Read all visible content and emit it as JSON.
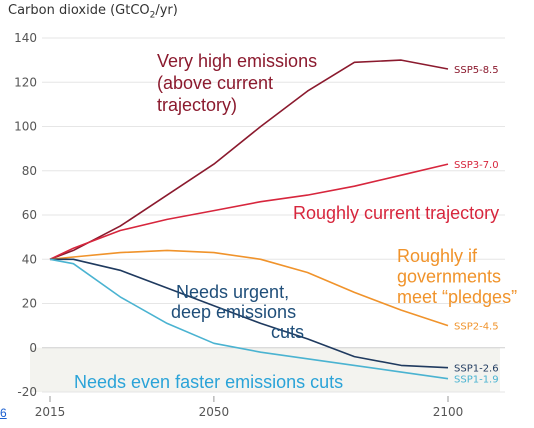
{
  "chart_data": {
    "type": "line",
    "ylabel_prefix": "Carbon dioxide (GtCO",
    "ylabel_sub": "2",
    "ylabel_suffix": "/yr)",
    "ylim": [
      -20,
      140
    ],
    "yticks": [
      -20,
      0,
      20,
      40,
      60,
      80,
      100,
      120,
      140
    ],
    "xlim": [
      2015,
      2100
    ],
    "xticks": [
      2015,
      2050,
      2100
    ],
    "grid": "horizontal",
    "series": [
      {
        "name": "SSP5-8.5",
        "color": "#8b1a2e",
        "x": [
          2015,
          2020,
          2030,
          2040,
          2050,
          2060,
          2070,
          2080,
          2090,
          2100
        ],
        "y": [
          40,
          44,
          55,
          69,
          83,
          100,
          116,
          129,
          130,
          126
        ]
      },
      {
        "name": "SSP3-7.0",
        "color": "#d7263d",
        "x": [
          2015,
          2020,
          2030,
          2040,
          2050,
          2060,
          2070,
          2080,
          2090,
          2100
        ],
        "y": [
          40,
          45,
          53,
          58,
          62,
          66,
          69,
          73,
          78,
          83
        ]
      },
      {
        "name": "SSP2-4.5",
        "color": "#f0932b",
        "x": [
          2015,
          2020,
          2030,
          2040,
          2050,
          2060,
          2070,
          2080,
          2090,
          2100
        ],
        "y": [
          40,
          41,
          43,
          44,
          43,
          40,
          34,
          25,
          17,
          10
        ]
      },
      {
        "name": "SSP1-2.6",
        "color": "#1f3a5f",
        "x": [
          2015,
          2020,
          2030,
          2040,
          2050,
          2060,
          2070,
          2080,
          2090,
          2100
        ],
        "y": [
          40,
          40,
          35,
          27,
          19,
          11,
          4,
          -4,
          -8,
          -9
        ]
      },
      {
        "name": "SSP1-1.9",
        "color": "#4ab3d1",
        "x": [
          2015,
          2020,
          2030,
          2040,
          2050,
          2060,
          2070,
          2080,
          2090,
          2100
        ],
        "y": [
          40,
          38,
          23,
          11,
          2,
          -2,
          -5,
          -8,
          -11,
          -14
        ]
      }
    ],
    "annotations": [
      {
        "lines": [
          "Very high emissions",
          "(above current",
          "trajectory)"
        ],
        "color": "#8b1a2e"
      },
      {
        "lines": [
          "Roughly current trajectory"
        ],
        "color": "#d7263d"
      },
      {
        "lines": [
          "Roughly if",
          "governments",
          "meet “pledges”"
        ],
        "color": "#f0932b"
      },
      {
        "lines": [
          "Needs urgent,",
          "deep emissions",
          "cuts"
        ],
        "color": "#1f4e79"
      },
      {
        "lines": [
          "Needs even faster emissions cuts"
        ],
        "color": "#2aa3d8"
      }
    ]
  },
  "page_fragment": "6"
}
